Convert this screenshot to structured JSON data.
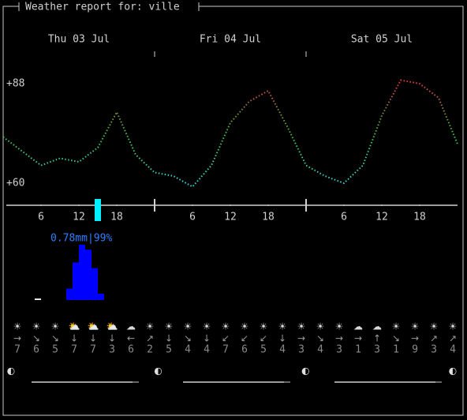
{
  "header": {
    "title": "Weather report for: ville"
  },
  "days": [
    "Thu 03 Jul",
    "Fri 04 Jul",
    "Sat 05 Jul"
  ],
  "chart_data": [
    {
      "type": "line",
      "x": [
        0,
        3,
        6,
        9,
        12,
        15,
        18,
        21,
        24,
        27,
        30,
        33,
        36,
        39,
        42,
        45,
        48,
        51,
        54,
        57,
        60,
        63,
        66,
        69,
        72
      ],
      "values": [
        73,
        69,
        65,
        67,
        66,
        70,
        80,
        68,
        63,
        62,
        59,
        65,
        77,
        83,
        86,
        76,
        65,
        62,
        60,
        65,
        79,
        89,
        88,
        84,
        71
      ],
      "colors": [
        "#3fd0d8",
        "#3fbf3f",
        "#e03c3c"
      ],
      "xlim": [
        0,
        72
      ],
      "ylim": [
        60,
        88
      ],
      "yticks": [
        {
          "value": 88,
          "label": "+88"
        },
        {
          "value": 60,
          "label": "+60"
        }
      ],
      "xticks": [
        6,
        12,
        18,
        {
          "value": 30,
          "label": "6"
        },
        {
          "value": 36,
          "label": "12"
        },
        {
          "value": 42,
          "label": "18"
        },
        {
          "value": 54,
          "label": "6"
        },
        {
          "value": 60,
          "label": "12"
        },
        {
          "value": 66,
          "label": "18"
        }
      ],
      "current_hour": 15,
      "current_color": "#00f0ff"
    },
    {
      "type": "bar",
      "x": [
        5.5,
        10.5,
        11.5,
        12.5,
        13.5,
        14.5,
        15.5
      ],
      "values": [
        0.02,
        0.16,
        0.53,
        0.78,
        0.71,
        0.45,
        0.09
      ],
      "colors": [
        "#ffffff",
        "#0000ff",
        "#0000ff",
        "#0000ff",
        "#0000ff",
        "#0000ff",
        "#0000ff"
      ],
      "xlim": [
        0,
        72
      ],
      "ylim": [
        0,
        0.78
      ],
      "annotation": "0.78mm|99%",
      "annotation_color": "#2f7fff"
    }
  ],
  "forecast": {
    "icons": [
      "☀",
      "☀",
      "☀",
      "⛅",
      "⛅",
      "⛅",
      "☁",
      "☀",
      "☀",
      "☀",
      "☀",
      "☀",
      "☀",
      "☀",
      "☀",
      "☀",
      "☀",
      "☀",
      "☁",
      "☁",
      "☀",
      "☀",
      "☀",
      "☀"
    ],
    "wind_directions": [
      "→",
      "↘",
      "↘",
      "↓",
      "↓",
      "↓",
      "←",
      "↗",
      "↓",
      "↘",
      "↓",
      "↙",
      "↙",
      "↙",
      "↓",
      "→",
      "↘",
      "→",
      "→",
      "↑",
      "↘",
      "→",
      "↗",
      "↗"
    ],
    "wind_speeds": [
      "7",
      "6",
      "5",
      "7",
      "7",
      "3",
      "6",
      "2",
      "5",
      "4",
      "4",
      "7",
      "6",
      "5",
      "4",
      "3",
      "4",
      "3",
      "1",
      "3",
      "1",
      "9",
      "3",
      "4"
    ]
  },
  "moon_phases": [
    "◐",
    "◐",
    "◐",
    "◐"
  ]
}
